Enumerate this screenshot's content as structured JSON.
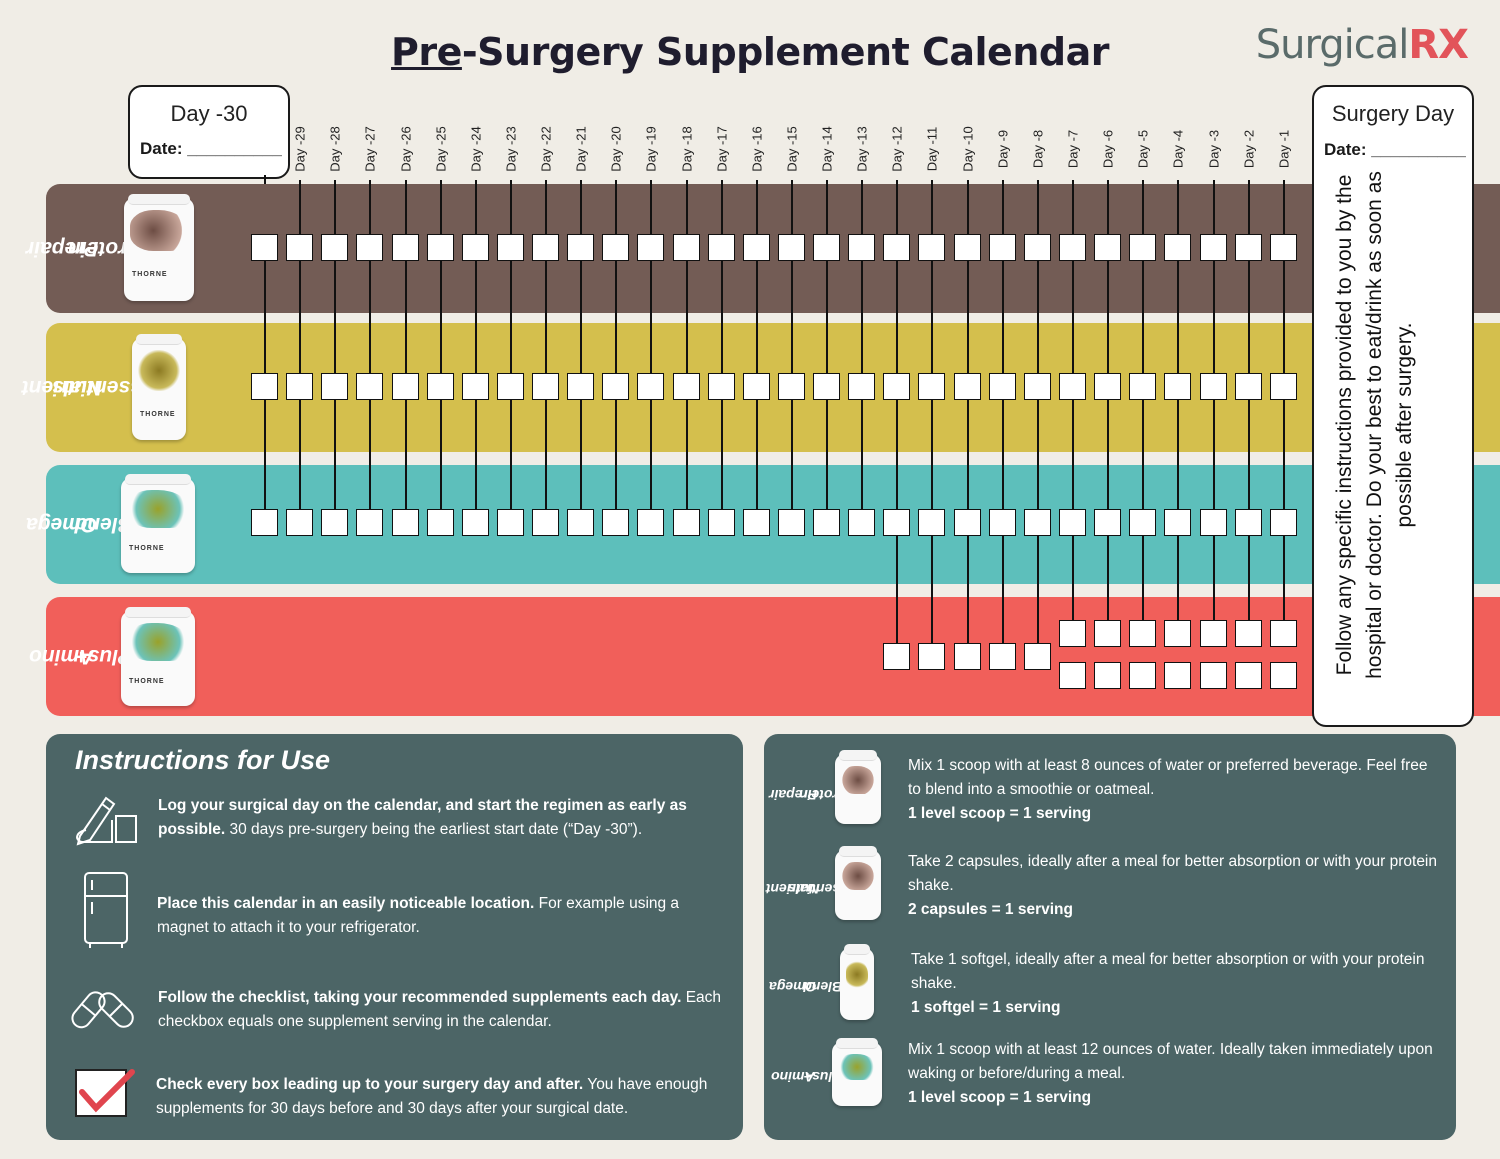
{
  "title": {
    "underlined": "Pre",
    "rest": "-Surgery Supplement Calendar"
  },
  "logo": {
    "text": "Surgical",
    "accent": "RX"
  },
  "start_box": {
    "label": "Day -30",
    "date_label": "Date: __________"
  },
  "surgery_box": {
    "label": "Surgery Day",
    "date_label": "Date: __________",
    "note": "Follow any specific instructions provided to you by the hospital or doctor.   Do your best to eat/drink  as soon as possible after surgery."
  },
  "days": [
    "Day -29",
    "Day -28",
    "Day -27",
    "Day -26",
    "Day -25",
    "Day -24",
    "Day -23",
    "Day -22",
    "Day -21",
    "Day -20",
    "Day -19",
    "Day -18",
    "Day -17",
    "Day -16",
    "Day -15",
    "Day -14",
    "Day -13",
    "Day -12",
    "Day -11",
    "Day -10",
    "Day -9",
    "Day -8",
    "Day -7",
    "Day -6",
    "Day -5",
    "Day -4",
    "Day -3",
    "Day -2",
    "Day -1"
  ],
  "supplements": [
    {
      "name_line1": "Prepair",
      "name_line2": "Protein",
      "color": "#735c55",
      "jar_brand": "THORNE"
    },
    {
      "name_line1": "Nutrient",
      "name_line2": "Essentials",
      "color": "#d4bf4d",
      "jar_brand": "THORNE"
    },
    {
      "name_line1": "Omega",
      "name_line2": "Blend",
      "color": "#5dbfbb",
      "jar_brand": "THORNE"
    },
    {
      "name_line1": "Amino",
      "name_line2": "Plus+",
      "color": "#f15f5a",
      "jar_brand": "THORNE"
    }
  ],
  "instructions": {
    "title": "Instructions for Use",
    "items": [
      {
        "icon": "hand-writing-icon",
        "bold": "Log your surgical day on the calendar, and start the regimen as early as possible.",
        "text": " 30 days pre-surgery being the earliest start date (“Day -30”)."
      },
      {
        "icon": "refrigerator-icon",
        "bold": "Place this calendar in an easily noticeable location.",
        "text": " For example using a magnet to attach it to your refrigerator."
      },
      {
        "icon": "pills-icon",
        "bold": "Follow the checklist, taking your recommended supplements each day.",
        "text": "  Each checkbox equals one supplement serving in the calendar."
      },
      {
        "icon": "checkbox-icon",
        "bold": "Check every box leading up to your surgery day and after.",
        "text": "  You have enough supplements for 30 days before and 30 days after your surgical date."
      }
    ]
  },
  "dosing": [
    {
      "name_line1": "Prepair",
      "name_line2": "Protein",
      "text": "Mix 1 scoop with at least 8 ounces of water or preferred beverage.  Feel free to blend into a smoothie or oatmeal.",
      "serving": "1 level scoop = 1 serving"
    },
    {
      "name_line1": "Nutrient",
      "name_line2": "Essentials",
      "text": "Take 2 capsules, ideally after a meal for better absorption or with your protein shake.",
      "serving": "2 capsules = 1 serving"
    },
    {
      "name_line1": "Omega",
      "name_line2": "Blend",
      "text": "Take 1 softgel, ideally after a meal for better absorption or with your protein shake.",
      "serving": "1 softgel = 1 serving"
    },
    {
      "name_line1": "Amino",
      "name_line2": "Plus+",
      "text": "Mix 1 scoop with at least 12 ounces of water.  Ideally taken immediately upon waking or before/during a meal.",
      "serving": "1 level scoop = 1 serving"
    }
  ]
}
